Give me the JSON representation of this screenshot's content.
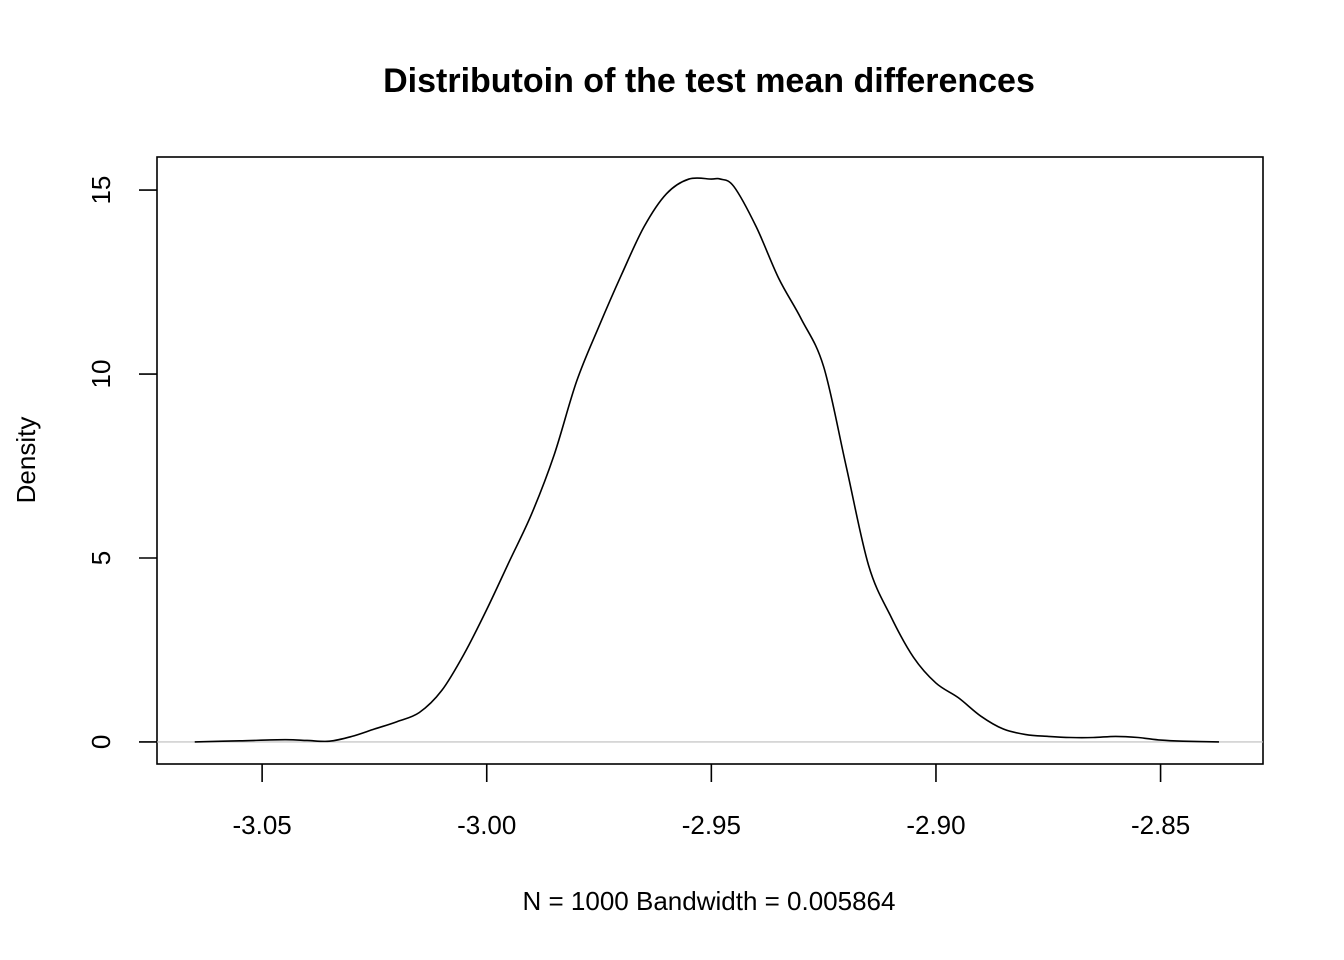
{
  "chart_data": {
    "type": "line",
    "title": "Distributoin of the test mean differences",
    "xlabel": "N = 1000   Bandwidth = 0.005864",
    "ylabel": "Density",
    "xlim": [
      -3.0734,
      -2.8272
    ],
    "ylim": [
      -0.6,
      15.9
    ],
    "x_ticks": [
      -3.05,
      -3.0,
      -2.95,
      -2.9,
      -2.85
    ],
    "x_tick_labels": [
      "-3.05",
      "-3.00",
      "-2.95",
      "-2.90",
      "-2.85"
    ],
    "y_ticks": [
      0,
      5,
      10,
      15
    ],
    "y_tick_labels": [
      "0",
      "5",
      "10",
      "15"
    ],
    "zero_line": true,
    "grid": false,
    "series": [
      {
        "x": [
          -3.065,
          -3.055,
          -3.045,
          -3.04,
          -3.035,
          -3.03,
          -3.025,
          -3.02,
          -3.015,
          -3.01,
          -3.005,
          -3.0,
          -2.995,
          -2.99,
          -2.985,
          -2.98,
          -2.975,
          -2.97,
          -2.965,
          -2.96,
          -2.955,
          -2.95,
          -2.948,
          -2.945,
          -2.94,
          -2.935,
          -2.93,
          -2.925,
          -2.92,
          -2.915,
          -2.91,
          -2.905,
          -2.9,
          -2.895,
          -2.89,
          -2.885,
          -2.88,
          -2.875,
          -2.87,
          -2.865,
          -2.86,
          -2.855,
          -2.85,
          -2.845,
          -2.837
        ],
        "y": [
          0.0,
          0.03,
          0.06,
          0.04,
          0.02,
          0.15,
          0.35,
          0.55,
          0.8,
          1.4,
          2.4,
          3.6,
          4.9,
          6.2,
          7.8,
          9.8,
          11.3,
          12.7,
          14.0,
          14.9,
          15.3,
          15.3,
          15.3,
          15.1,
          14.0,
          12.6,
          11.5,
          10.2,
          7.5,
          4.8,
          3.4,
          2.3,
          1.6,
          1.2,
          0.7,
          0.35,
          0.2,
          0.15,
          0.12,
          0.12,
          0.15,
          0.12,
          0.05,
          0.02,
          0.0
        ]
      }
    ]
  }
}
